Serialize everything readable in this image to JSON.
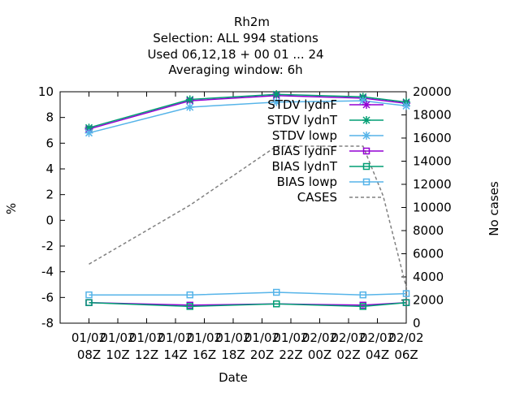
{
  "chart_data": {
    "type": "line",
    "title_lines": [
      "Rh2m",
      "Selection: ALL    994 stations",
      "Used  06,12,18  + 00 01 ... 24",
      "Averaging window:  6h"
    ],
    "xlabel": "Date",
    "ylabel": "%",
    "y2label": "No cases",
    "ylim": [
      -8,
      10
    ],
    "y2lim": [
      0,
      20000
    ],
    "yticks": [
      "-8",
      "-6",
      "-4",
      "-2",
      "0",
      "2",
      "4",
      "6",
      "8",
      "10"
    ],
    "y2ticks": [
      "0",
      "2000",
      "4000",
      "6000",
      "8000",
      "10000",
      "12000",
      "14000",
      "16000",
      "18000",
      "20000"
    ],
    "x_tick_labels": [
      [
        "01/02",
        "08Z"
      ],
      [
        "01/02",
        "10Z"
      ],
      [
        "01/02",
        "12Z"
      ],
      [
        "01/02",
        "14Z"
      ],
      [
        "01/02",
        "16Z"
      ],
      [
        "01/02",
        "18Z"
      ],
      [
        "01/02",
        "20Z"
      ],
      [
        "01/02",
        "22Z"
      ],
      [
        "02/02",
        "00Z"
      ],
      [
        "02/02",
        "02Z"
      ],
      [
        "02/02",
        "04Z"
      ],
      [
        "02/02",
        "06Z"
      ]
    ],
    "x_tick_hours": [
      8,
      10,
      12,
      14,
      16,
      18,
      20,
      22,
      24,
      26,
      28,
      30
    ],
    "x_range_hours": [
      6,
      30
    ],
    "legend_position": "top-right",
    "series": [
      {
        "name": "STDV lydnF",
        "color": "#9400d3",
        "style": "solid",
        "marker": "x",
        "x": [
          8,
          15,
          21,
          27,
          30
        ],
        "values": [
          7.1,
          9.3,
          9.7,
          9.5,
          9.1
        ]
      },
      {
        "name": "STDV lydnT",
        "color": "#009e73",
        "style": "solid",
        "marker": "x",
        "x": [
          8,
          15,
          21,
          27,
          30
        ],
        "values": [
          7.2,
          9.4,
          9.8,
          9.6,
          9.2
        ]
      },
      {
        "name": "STDV lowp",
        "color": "#56b4e9",
        "style": "solid",
        "marker": "x",
        "x": [
          8,
          15,
          21,
          27,
          30
        ],
        "values": [
          6.8,
          8.8,
          9.2,
          9.3,
          8.9
        ]
      },
      {
        "name": "BIAS lydnF",
        "color": "#9400d3",
        "style": "solid",
        "marker": "square",
        "x": [
          8,
          15,
          21,
          27,
          30
        ],
        "values": [
          -6.4,
          -6.6,
          -6.5,
          -6.6,
          -6.4
        ]
      },
      {
        "name": "BIAS lydnT",
        "color": "#009e73",
        "style": "solid",
        "marker": "square",
        "x": [
          8,
          15,
          21,
          27,
          30
        ],
        "values": [
          -6.4,
          -6.7,
          -6.5,
          -6.7,
          -6.4
        ]
      },
      {
        "name": "BIAS lowp",
        "color": "#56b4e9",
        "style": "solid",
        "marker": "square",
        "x": [
          8,
          15,
          21,
          27,
          30
        ],
        "values": [
          -5.8,
          -5.8,
          -5.6,
          -5.8,
          -5.7
        ]
      },
      {
        "name": "CASES",
        "color": "#808080",
        "style": "dashed",
        "marker": "none",
        "axis": "y2",
        "x": [
          8,
          15,
          21,
          27,
          28.4,
          30
        ],
        "values": [
          5100,
          10200,
          15300,
          15300,
          11000,
          3100
        ]
      }
    ]
  }
}
